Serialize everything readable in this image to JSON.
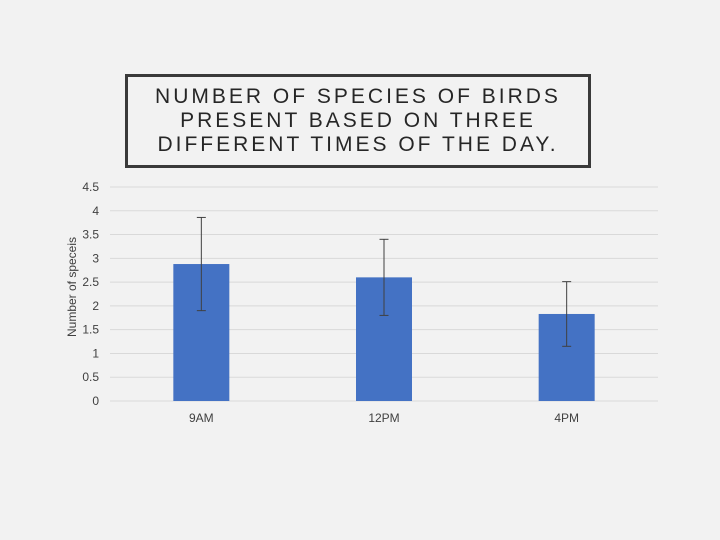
{
  "chart_data": {
    "type": "bar",
    "title": "NUMBER OF SPECIES OF BIRDS PRESENT BASED ON THREE DIFFERENT TIMES OF THE DAY.",
    "xlabel": "",
    "ylabel": "Number of speceis",
    "categories": [
      "9AM",
      "12PM",
      "4PM"
    ],
    "series": [
      {
        "values": [
          2.88,
          2.6,
          1.83
        ],
        "error": [
          0.98,
          0.8,
          0.68
        ]
      }
    ],
    "ylim": [
      0,
      4.5
    ],
    "yticks": [
      "0",
      "0.5",
      "1",
      "1.5",
      "2",
      "2.5",
      "3",
      "3.5",
      "4",
      "4.5"
    ],
    "grid": true,
    "legend": "none",
    "colors": {
      "bar": "#4472c4",
      "gridline": "#d9d9d9",
      "errorbar": "#404040"
    }
  }
}
